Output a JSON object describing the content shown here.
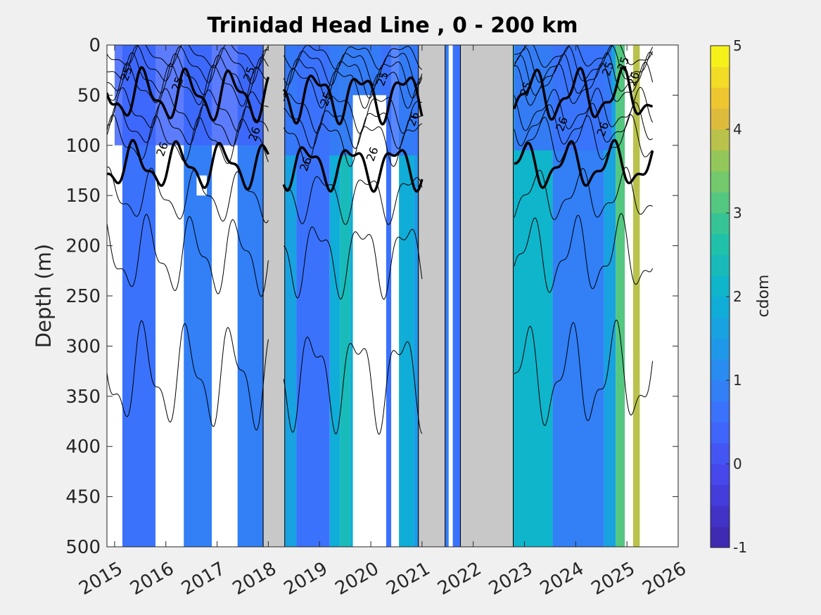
{
  "chart_data": {
    "type": "heatmap",
    "title": "Trinidad Head Line , 0 - 200 km",
    "xlabel": "",
    "ylabel": "Depth (m)",
    "xlim": [
      2014.85,
      2026
    ],
    "ylim": [
      0,
      500
    ],
    "y_reversed": true,
    "x_ticks": [
      "2015",
      "2016",
      "2017",
      "2018",
      "2019",
      "2020",
      "2021",
      "2022",
      "2023",
      "2024",
      "2025",
      "2026"
    ],
    "x_tick_values": [
      2015,
      2016,
      2017,
      2018,
      2019,
      2020,
      2021,
      2022,
      2023,
      2024,
      2025,
      2026
    ],
    "y_ticks": [
      "0",
      "50",
      "100",
      "150",
      "200",
      "250",
      "300",
      "350",
      "400",
      "450",
      "500"
    ],
    "y_tick_values": [
      0,
      50,
      100,
      150,
      200,
      250,
      300,
      350,
      400,
      450,
      500
    ],
    "colorbar": {
      "label": "cdom",
      "range": [
        -1,
        5
      ],
      "levels": 24,
      "ticks": [
        "-1",
        "0",
        "1",
        "2",
        "3",
        "4",
        "5"
      ],
      "tick_values": [
        -1,
        0,
        1,
        2,
        3,
        4,
        5
      ],
      "colormap": "parula"
    },
    "no_data_color": "#c8c8c8",
    "missing_color": "#ffffff",
    "periods": [
      {
        "start": 2015.15,
        "end": 2015.8,
        "value": 0.6
      },
      {
        "start": 2015.8,
        "end": 2016.35,
        "value": -9
      },
      {
        "start": 2016.35,
        "end": 2016.9,
        "value": 0.9
      },
      {
        "start": 2016.9,
        "end": 2017.4,
        "value": -9
      },
      {
        "start": 2017.4,
        "end": 2017.9,
        "value": 0.9
      },
      {
        "start": 2017.9,
        "end": 2018.32,
        "value": -8
      },
      {
        "start": 2018.32,
        "end": 2018.55,
        "value": 1.6
      },
      {
        "start": 2018.55,
        "end": 2019.2,
        "value": 0.5
      },
      {
        "start": 2019.2,
        "end": 2019.4,
        "value": 1.8
      },
      {
        "start": 2019.4,
        "end": 2019.6,
        "value": 2.3
      },
      {
        "start": 2019.6,
        "end": 2020.2,
        "value": 1.8
      },
      {
        "start": 2020.2,
        "end": 2020.4,
        "value": 0.5
      },
      {
        "start": 2020.4,
        "end": 2020.55,
        "value": -9
      },
      {
        "start": 2020.55,
        "end": 2020.85,
        "value": 1.9
      },
      {
        "start": 2020.85,
        "end": 2020.93,
        "value": 1.4
      },
      {
        "start": 2020.93,
        "end": 2021.45,
        "value": -8
      },
      {
        "start": 2021.45,
        "end": 2021.52,
        "value": 0.8
      },
      {
        "start": 2021.6,
        "end": 2021.75,
        "value": 0.6
      },
      {
        "start": 2021.75,
        "end": 2022.78,
        "value": -8
      },
      {
        "start": 2022.78,
        "end": 2023.55,
        "value": 2.0
      },
      {
        "start": 2023.55,
        "end": 2024.55,
        "value": 0.9
      },
      {
        "start": 2024.55,
        "end": 2024.78,
        "value": 1.7
      },
      {
        "start": 2024.78,
        "end": 2024.96,
        "value": 3.2
      },
      {
        "start": 2024.96,
        "end": 2025.12,
        "value": -9
      },
      {
        "start": 2025.12,
        "end": 2025.25,
        "value": 3.9
      }
    ],
    "surface_layers": [
      {
        "start": 2015.0,
        "end": 2018.0,
        "depth": 100,
        "value": 0.4
      },
      {
        "start": 2018.3,
        "end": 2021.0,
        "depth": 110,
        "value": 0.6
      },
      {
        "start": 2022.8,
        "end": 2024.7,
        "depth": 105,
        "value": 0.5
      }
    ],
    "missing_patches": [
      {
        "start": 2014.85,
        "end": 2015.15,
        "depth_from": 130,
        "depth_to": 500
      },
      {
        "start": 2015.8,
        "end": 2016.1,
        "depth_from": 120,
        "depth_to": 500
      },
      {
        "start": 2016.9,
        "end": 2017.15,
        "depth_from": 200,
        "depth_to": 500
      },
      {
        "start": 2016.6,
        "end": 2016.8,
        "depth_from": 130,
        "depth_to": 150
      },
      {
        "start": 2019.65,
        "end": 2020.3,
        "depth_from": 50,
        "depth_to": 500
      }
    ],
    "contours": {
      "labels": [
        "25",
        "25",
        "25",
        "25",
        "25",
        "25",
        "25",
        "25",
        "26",
        "26",
        "26",
        "26",
        "26",
        "26",
        "26",
        "26"
      ],
      "levels": [
        25.0,
        26.0
      ],
      "segments": [
        {
          "start": 2014.85,
          "end": 2018.0
        },
        {
          "start": 2018.3,
          "end": 2021.0
        },
        {
          "start": 2022.8,
          "end": 2025.5
        }
      ],
      "bold_depths": [
        {
          "base": 50,
          "amplitude": 20
        },
        {
          "base": 120,
          "amplitude": 18
        }
      ],
      "thin_depths": [
        {
          "base": 10,
          "amplitude": 10
        },
        {
          "base": 20,
          "amplitude": 14
        },
        {
          "base": 30,
          "amplitude": 16
        },
        {
          "base": 40,
          "amplitude": 16
        },
        {
          "base": 65,
          "amplitude": 16
        },
        {
          "base": 80,
          "amplitude": 16
        },
        {
          "base": 95,
          "amplitude": 18
        },
        {
          "base": 150,
          "amplitude": 20
        },
        {
          "base": 210,
          "amplitude": 30
        },
        {
          "base": 330,
          "amplitude": 40
        }
      ]
    }
  }
}
